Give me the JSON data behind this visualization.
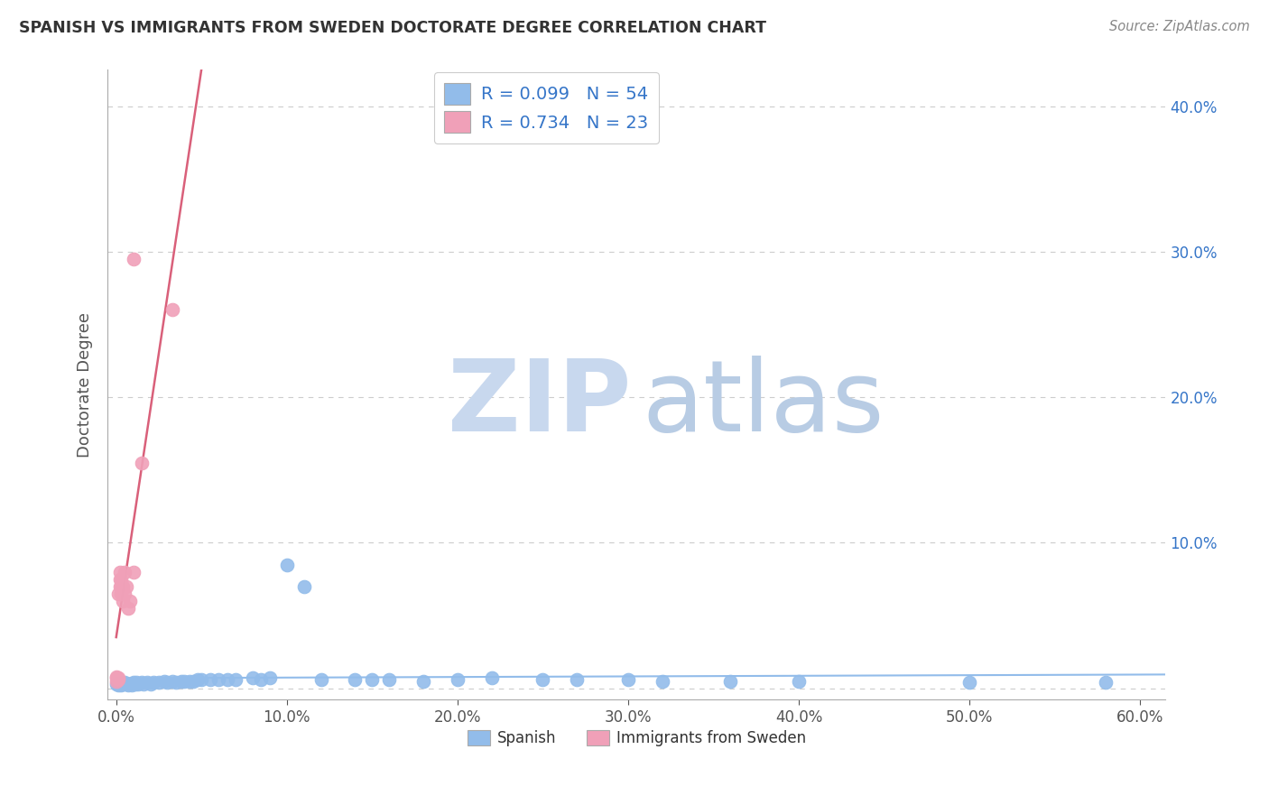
{
  "title": "SPANISH VS IMMIGRANTS FROM SWEDEN DOCTORATE DEGREE CORRELATION CHART",
  "source": "Source: ZipAtlas.com",
  "ylabel": "Doctorate Degree",
  "xlim": [
    -0.005,
    0.615
  ],
  "ylim": [
    -0.008,
    0.425
  ],
  "xtick_vals": [
    0.0,
    0.1,
    0.2,
    0.3,
    0.4,
    0.5,
    0.6
  ],
  "ytick_vals": [
    0.0,
    0.1,
    0.2,
    0.3,
    0.4
  ],
  "spanish_color": "#92bcea",
  "sweden_color": "#f0a0b8",
  "sweden_line_color": "#d9607a",
  "spanish_R": 0.099,
  "spanish_N": 54,
  "sweden_R": 0.734,
  "sweden_N": 23,
  "legend_text_color": "#3575c8",
  "yaxis_label_color": "#3575c8",
  "xaxis_label_color": "#555555",
  "watermark_ZIP_color": "#c8d8ee",
  "watermark_atlas_color": "#b8cce4",
  "grid_color": "#cccccc",
  "title_color": "#333333",
  "source_color": "#888888",
  "sp_x": [
    0.0,
    0.001,
    0.002,
    0.003,
    0.004,
    0.005,
    0.006,
    0.007,
    0.008,
    0.009,
    0.01,
    0.011,
    0.012,
    0.013,
    0.015,
    0.016,
    0.018,
    0.02,
    0.022,
    0.025,
    0.028,
    0.03,
    0.033,
    0.035,
    0.038,
    0.04,
    0.043,
    0.045,
    0.048,
    0.05,
    0.055,
    0.06,
    0.065,
    0.07,
    0.08,
    0.085,
    0.09,
    0.1,
    0.11,
    0.12,
    0.14,
    0.15,
    0.16,
    0.18,
    0.2,
    0.22,
    0.25,
    0.27,
    0.3,
    0.32,
    0.36,
    0.4,
    0.5,
    0.58
  ],
  "sp_y": [
    0.003,
    0.002,
    0.003,
    0.002,
    0.003,
    0.004,
    0.003,
    0.002,
    0.003,
    0.002,
    0.004,
    0.003,
    0.004,
    0.003,
    0.004,
    0.003,
    0.004,
    0.003,
    0.004,
    0.004,
    0.005,
    0.004,
    0.005,
    0.004,
    0.005,
    0.005,
    0.005,
    0.005,
    0.006,
    0.006,
    0.006,
    0.006,
    0.006,
    0.006,
    0.007,
    0.006,
    0.007,
    0.085,
    0.07,
    0.006,
    0.006,
    0.006,
    0.006,
    0.005,
    0.006,
    0.007,
    0.006,
    0.006,
    0.006,
    0.005,
    0.005,
    0.005,
    0.004,
    0.004
  ],
  "sw_x": [
    0.0,
    0.0,
    0.0,
    0.001,
    0.001,
    0.001,
    0.002,
    0.002,
    0.002,
    0.003,
    0.003,
    0.003,
    0.004,
    0.004,
    0.005,
    0.005,
    0.006,
    0.007,
    0.008,
    0.01,
    0.015,
    0.033,
    0.01
  ],
  "sw_y": [
    0.005,
    0.007,
    0.008,
    0.006,
    0.007,
    0.065,
    0.07,
    0.075,
    0.08,
    0.065,
    0.07,
    0.075,
    0.06,
    0.07,
    0.065,
    0.08,
    0.07,
    0.055,
    0.06,
    0.08,
    0.155,
    0.26,
    0.295
  ]
}
